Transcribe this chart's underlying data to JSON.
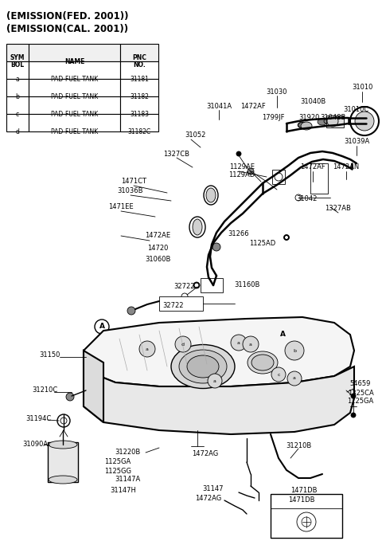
{
  "bg_color": "#ffffff",
  "title1": "(EMISSION(FED. 2001))",
  "title2": "(EMISSION(CAL. 2001))",
  "table_rows": [
    [
      "a",
      "PAD-FUEL TANK",
      "31181"
    ],
    [
      "b",
      "PAD-FUEL TANK",
      "31182"
    ],
    [
      "c",
      "PAD-FUEL TANK",
      "31183"
    ],
    [
      "d",
      "PAD-FUEL TANK",
      "31182C"
    ]
  ],
  "figsize": [
    4.8,
    6.84
  ],
  "dpi": 100
}
